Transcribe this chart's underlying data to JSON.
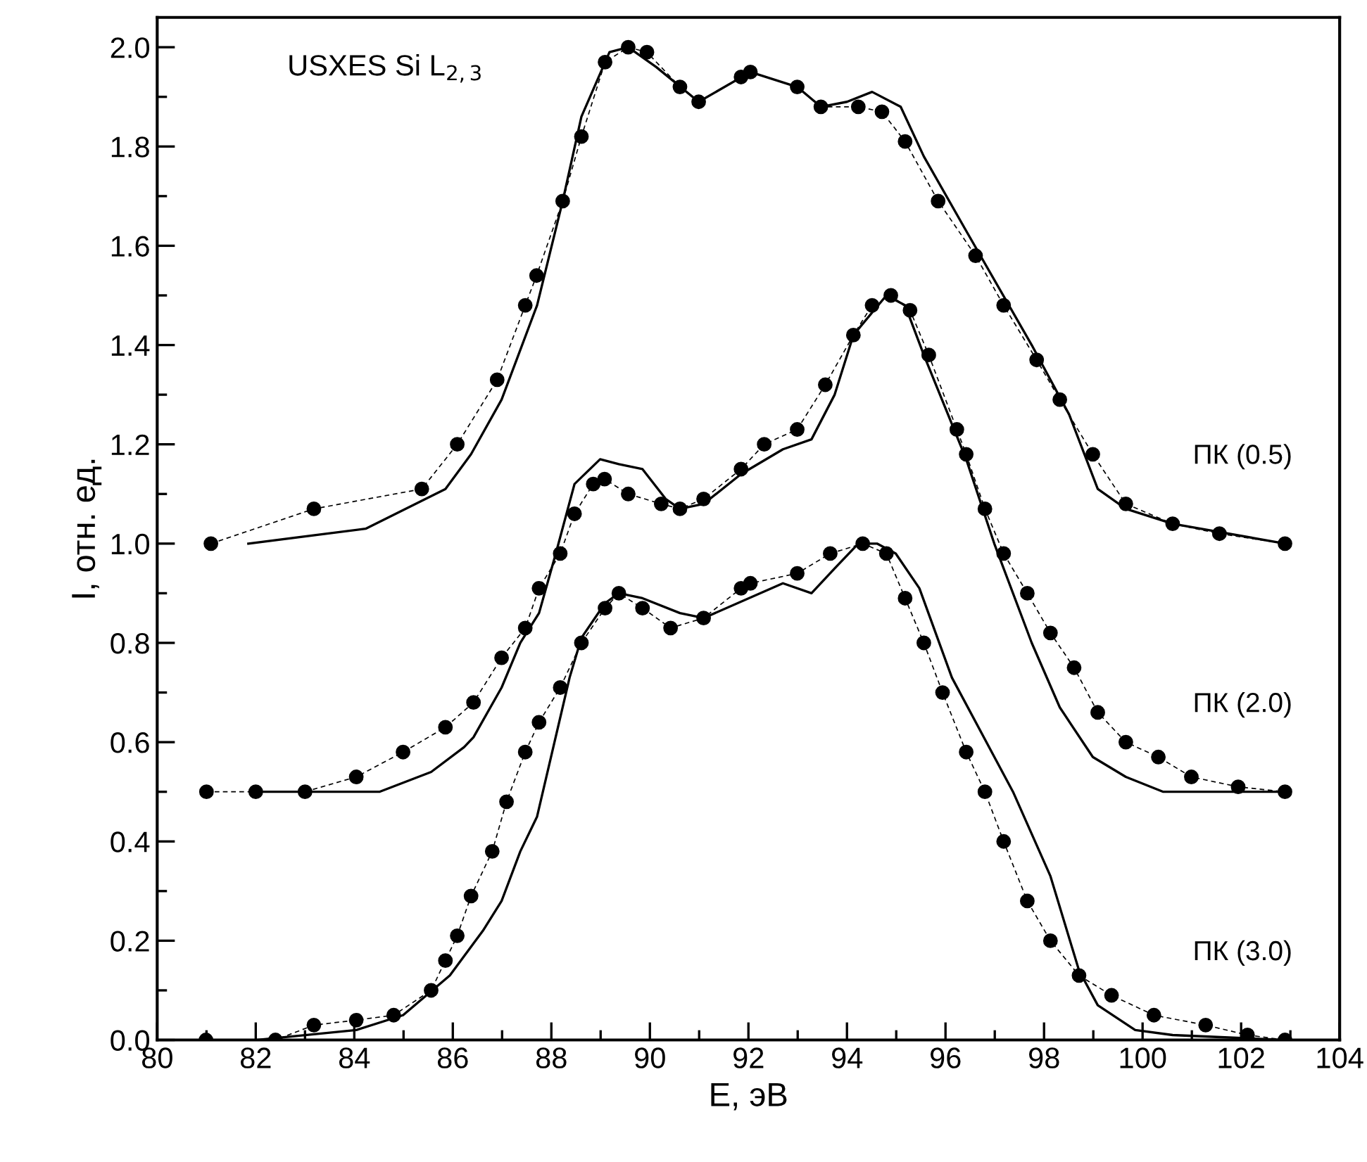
{
  "chart_data": {
    "type": "line",
    "xlabel": "E, эВ",
    "ylabel": "I, отн. ед.",
    "annotations": [
      "USXES Si L$_{2,3}$"
    ],
    "xlim": [
      80,
      104
    ],
    "xticks": [
      80,
      82,
      84,
      86,
      88,
      90,
      92,
      94,
      96,
      98,
      100,
      102,
      104
    ],
    "ylim": [
      0,
      2.06
    ],
    "yticks": [
      {
        "value": 0,
        "label": "0.0"
      },
      0.2,
      0.4,
      0.6,
      0.8,
      {
        "value": 1,
        "label": "1.0"
      },
      1.2,
      1.4,
      1.6,
      1.8,
      {
        "value": 2,
        "label": "2.0"
      }
    ],
    "grid": false,
    "legend": false,
    "series": [
      {
        "name": "ПК (0.5)",
        "color": "#000000",
        "marker": "circle",
        "line_style": "dashed",
        "x": [
          81.09,
          83.18,
          85.37,
          86.09,
          86.9,
          87.47,
          87.7,
          88.23,
          88.61,
          89.09,
          89.56,
          89.94,
          90.61,
          90.99,
          91.85,
          92.04,
          92.99,
          93.47,
          94.23,
          94.71,
          95.18,
          95.85,
          96.61,
          97.18,
          97.85,
          98.32,
          98.99,
          99.66,
          100.61,
          101.56,
          102.89
        ],
        "values": [
          1.0,
          1.07,
          1.11,
          1.2,
          1.33,
          1.48,
          1.54,
          1.69,
          1.82,
          1.97,
          2.0,
          1.99,
          1.92,
          1.89,
          1.94,
          1.95,
          1.92,
          1.88,
          1.88,
          1.87,
          1.81,
          1.69,
          1.58,
          1.48,
          1.37,
          1.29,
          1.18,
          1.08,
          1.04,
          1.02,
          1.0
        ]
      },
      {
        "color": "#000000",
        "marker": "none",
        "line_style": "solid",
        "x": [
          81.85,
          84.23,
          85.85,
          86.37,
          86.99,
          87.71,
          88.23,
          88.61,
          89.18,
          89.56,
          90.13,
          90.99,
          92.04,
          92.99,
          93.47,
          94.0,
          94.51,
          95.09,
          95.56,
          96.42,
          97.75,
          98.51,
          99.09,
          99.66,
          100.61,
          102.89
        ],
        "values": [
          1.0,
          1.03,
          1.11,
          1.18,
          1.29,
          1.48,
          1.69,
          1.86,
          1.99,
          2.0,
          1.96,
          1.89,
          1.95,
          1.92,
          1.88,
          1.89,
          1.91,
          1.88,
          1.78,
          1.63,
          1.4,
          1.26,
          1.11,
          1.07,
          1.04,
          1.0
        ]
      },
      {
        "name": "ПК (2.0)",
        "color": "#000000",
        "marker": "circle",
        "line_style": "dashed",
        "x": [
          81.0,
          82.0,
          83.0,
          84.04,
          84.99,
          85.85,
          86.42,
          86.99,
          87.47,
          87.75,
          88.18,
          88.47,
          88.85,
          89.08,
          89.56,
          90.23,
          90.61,
          91.09,
          91.85,
          92.32,
          92.99,
          93.56,
          94.13,
          94.51,
          94.89,
          95.28,
          95.66,
          96.23,
          96.42,
          96.8,
          97.18,
          97.66,
          98.13,
          98.61,
          99.09,
          99.66,
          100.32,
          100.99,
          101.94,
          102.89
        ],
        "values": [
          0.5,
          0.5,
          0.5,
          0.53,
          0.58,
          0.63,
          0.68,
          0.77,
          0.83,
          0.91,
          0.98,
          1.06,
          1.12,
          1.13,
          1.1,
          1.08,
          1.07,
          1.09,
          1.15,
          1.2,
          1.23,
          1.32,
          1.42,
          1.48,
          1.5,
          1.47,
          1.38,
          1.23,
          1.18,
          1.07,
          0.98,
          0.9,
          0.82,
          0.75,
          0.66,
          0.6,
          0.57,
          0.53,
          0.51,
          0.5
        ]
      },
      {
        "color": "#000000",
        "marker": "none",
        "line_style": "solid",
        "x": [
          82.0,
          84.51,
          85.56,
          86.23,
          86.42,
          86.99,
          87.37,
          87.75,
          88.09,
          88.47,
          88.99,
          89.37,
          89.85,
          90.32,
          90.61,
          91.09,
          91.85,
          92.7,
          93.28,
          93.75,
          94.13,
          94.8,
          95.18,
          95.56,
          96.42,
          96.99,
          97.75,
          98.32,
          98.99,
          99.66,
          100.42,
          102.89
        ],
        "values": [
          0.5,
          0.5,
          0.54,
          0.59,
          0.61,
          0.71,
          0.8,
          0.86,
          0.98,
          1.12,
          1.17,
          1.16,
          1.15,
          1.09,
          1.07,
          1.08,
          1.14,
          1.19,
          1.21,
          1.3,
          1.42,
          1.5,
          1.48,
          1.38,
          1.17,
          1.0,
          0.8,
          0.67,
          0.57,
          0.53,
          0.5,
          0.5
        ]
      },
      {
        "name": "ПК (3.0)",
        "color": "#000000",
        "marker": "circle",
        "line_style": "dashed",
        "x": [
          80.99,
          82.4,
          83.18,
          84.04,
          84.8,
          85.56,
          85.85,
          86.09,
          86.37,
          86.8,
          87.09,
          87.47,
          87.75,
          88.18,
          88.61,
          89.09,
          89.37,
          89.85,
          90.42,
          91.09,
          91.85,
          92.04,
          92.99,
          93.66,
          94.32,
          94.8,
          95.18,
          95.56,
          95.94,
          96.42,
          96.8,
          97.18,
          97.66,
          98.13,
          98.71,
          99.37,
          100.23,
          101.28,
          102.13,
          102.89
        ],
        "values": [
          0.0,
          0.0,
          0.03,
          0.04,
          0.05,
          0.1,
          0.16,
          0.21,
          0.29,
          0.38,
          0.48,
          0.58,
          0.64,
          0.71,
          0.8,
          0.87,
          0.9,
          0.87,
          0.83,
          0.85,
          0.91,
          0.92,
          0.94,
          0.98,
          1.0,
          0.98,
          0.89,
          0.8,
          0.7,
          0.58,
          0.5,
          0.4,
          0.28,
          0.2,
          0.13,
          0.09,
          0.05,
          0.03,
          0.01,
          0.0
        ]
      },
      {
        "color": "#000000",
        "marker": "none",
        "line_style": "solid",
        "x": [
          82.0,
          84.04,
          84.99,
          85.94,
          86.61,
          86.99,
          87.37,
          87.71,
          88.04,
          88.37,
          88.61,
          89.09,
          89.37,
          89.85,
          90.61,
          91.09,
          92.7,
          93.28,
          93.75,
          94.23,
          94.61,
          94.99,
          95.47,
          96.13,
          97.37,
          98.13,
          98.71,
          99.09,
          99.85,
          100.61,
          102.89
        ],
        "values": [
          0.0,
          0.02,
          0.05,
          0.13,
          0.22,
          0.28,
          0.38,
          0.45,
          0.59,
          0.73,
          0.81,
          0.88,
          0.9,
          0.89,
          0.86,
          0.85,
          0.92,
          0.9,
          0.95,
          1.0,
          1.0,
          0.98,
          0.91,
          0.73,
          0.5,
          0.33,
          0.14,
          0.07,
          0.02,
          0.01,
          0.0
        ]
      }
    ]
  }
}
